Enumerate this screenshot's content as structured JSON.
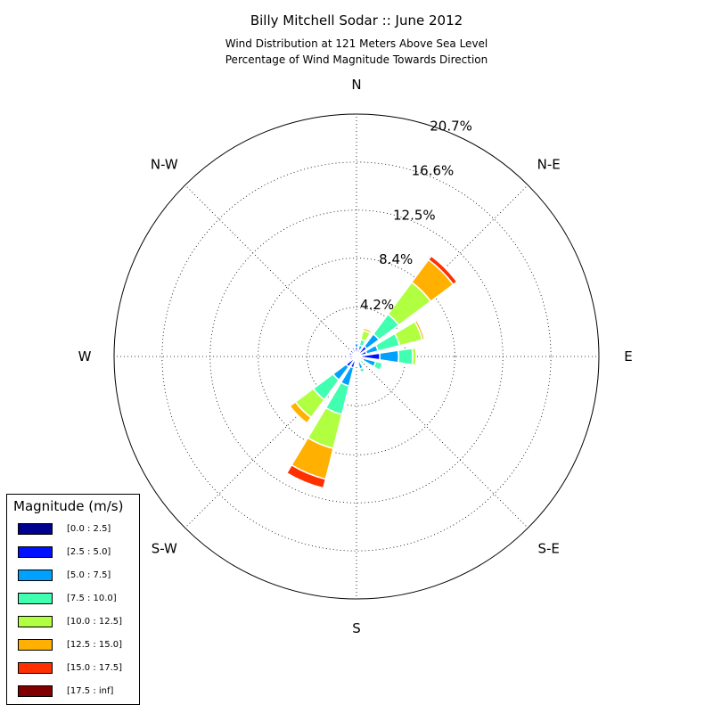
{
  "chart_data": {
    "type": "wind-rose",
    "title": "Billy Mitchell Sodar :: June 2012",
    "subtitle_lines": [
      "Wind Distribution at 121 Meters Above Sea Level",
      "Percentage of Wind Magnitude Towards Direction"
    ],
    "direction_labels": [
      {
        "label": "N",
        "angle": 0
      },
      {
        "label": "N-E",
        "angle": 45
      },
      {
        "label": "E",
        "angle": 90
      },
      {
        "label": "S-E",
        "angle": 135
      },
      {
        "label": "S",
        "angle": 180
      },
      {
        "label": "S-W",
        "angle": 225
      },
      {
        "label": "W",
        "angle": 270
      },
      {
        "label": "N-W",
        "angle": 315
      }
    ],
    "radial_ticks": [
      4.2,
      8.4,
      12.5,
      16.6,
      20.7
    ],
    "radial_tick_labels": [
      "4.2%",
      "8.4%",
      "12.5%",
      "16.6%",
      "20.7%"
    ],
    "rmax": 20.7,
    "grid": true,
    "legend": {
      "title": "Magnitude (m/s)",
      "placement": "lower-left",
      "bins": [
        {
          "label": "[0.0 : 2.5]",
          "color": "#00008f"
        },
        {
          "label": "[2.5 : 5.0]",
          "color": "#0010ff"
        },
        {
          "label": "[5.0 : 7.5]",
          "color": "#00a0ff"
        },
        {
          "label": "[7.5 : 10.0]",
          "color": "#40ffb0"
        },
        {
          "label": "[10.0 : 12.5]",
          "color": "#b0ff40"
        },
        {
          "label": "[12.5 : 15.0]",
          "color": "#ffb000"
        },
        {
          "label": "[15.0 : 17.5]",
          "color": "#ff3000"
        },
        {
          "label": "[17.5 : inf]",
          "color": "#800000"
        }
      ]
    },
    "series": [
      {
        "direction": 0,
        "values": [
          0.2,
          0.6,
          0.3,
          0.0,
          0.0,
          0.0,
          0.0,
          0.0
        ]
      },
      {
        "direction": 22.5,
        "values": [
          0.2,
          0.4,
          0.4,
          0.5,
          0.8,
          0.2,
          0.0,
          0.0
        ]
      },
      {
        "direction": 45,
        "values": [
          0.3,
          0.8,
          1.3,
          2.1,
          3.4,
          2.4,
          0.4,
          0.0
        ]
      },
      {
        "direction": 67.5,
        "values": [
          0.3,
          0.6,
          1.0,
          1.9,
          2.0,
          0.2,
          0.0,
          0.0
        ]
      },
      {
        "direction": 90,
        "values": [
          0.3,
          1.7,
          1.6,
          1.2,
          0.3,
          0.0,
          0.0,
          0.0
        ]
      },
      {
        "direction": 112.5,
        "values": [
          0.2,
          0.4,
          1.1,
          0.6,
          0.0,
          0.0,
          0.0,
          0.0
        ]
      },
      {
        "direction": 135,
        "values": [
          0.2,
          0.2,
          0.1,
          0.3,
          0.0,
          0.0,
          0.0,
          0.0
        ]
      },
      {
        "direction": 157.5,
        "values": [
          0.2,
          0.3,
          0.6,
          0.3,
          0.0,
          0.0,
          0.0,
          0.0
        ]
      },
      {
        "direction": 180,
        "values": [
          0.2,
          0.2,
          0.1,
          0.2,
          0.0,
          0.0,
          0.0,
          0.0
        ]
      },
      {
        "direction": 202.5,
        "values": [
          0.3,
          0.7,
          1.6,
          2.5,
          3.0,
          2.7,
          0.8,
          0.0
        ]
      },
      {
        "direction": 225,
        "values": [
          0.3,
          0.8,
          1.4,
          2.1,
          1.9,
          0.6,
          0.0,
          0.0
        ]
      },
      {
        "direction": 247.5,
        "values": [
          0.3,
          0.3,
          0.1,
          0.0,
          0.0,
          0.0,
          0.0,
          0.0
        ]
      },
      {
        "direction": 270,
        "values": [
          0.2,
          0.4,
          0.0,
          0.0,
          0.0,
          0.0,
          0.0,
          0.0
        ]
      },
      {
        "direction": 292.5,
        "values": [
          0.3,
          0.4,
          0.1,
          0.0,
          0.0,
          0.0,
          0.0,
          0.0
        ]
      },
      {
        "direction": 315,
        "values": [
          0.2,
          0.5,
          0.1,
          0.0,
          0.0,
          0.0,
          0.0,
          0.0
        ]
      },
      {
        "direction": 337.5,
        "values": [
          0.2,
          0.4,
          0.2,
          0.0,
          0.0,
          0.0,
          0.0,
          0.0
        ]
      }
    ]
  }
}
